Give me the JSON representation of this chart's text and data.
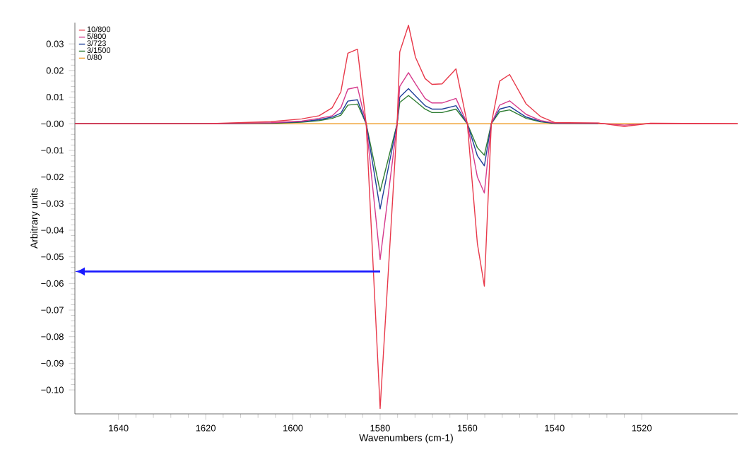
{
  "chart_data": {
    "type": "line",
    "xlabel": "Wavenumbers (cm-1)",
    "ylabel": "Arbitrary units",
    "xlim": [
      1650,
      1498
    ],
    "ylim": [
      -0.109,
      0.038
    ],
    "xticks": [
      1640,
      1620,
      1600,
      1580,
      1560,
      1540,
      1520
    ],
    "yticks": [
      {
        "value": 0.03,
        "label": "0.03"
      },
      {
        "value": 0.02,
        "label": "0.02"
      },
      {
        "value": 0.01,
        "label": "0.01"
      },
      {
        "value": 0,
        "label": "−0.00"
      },
      {
        "value": -0.01,
        "label": "−0.01"
      },
      {
        "value": -0.02,
        "label": "−0.02"
      },
      {
        "value": -0.03,
        "label": "−0.03"
      },
      {
        "value": -0.04,
        "label": "−0.04"
      },
      {
        "value": -0.05,
        "label": "−0.05"
      },
      {
        "value": -0.06,
        "label": "−0.06"
      },
      {
        "value": -0.07,
        "label": "−0.07"
      },
      {
        "value": -0.08,
        "label": "−0.08"
      },
      {
        "value": -0.09,
        "label": "−0.09"
      },
      {
        "value": -0.1,
        "label": "−0.10"
      }
    ],
    "legend": "top left",
    "ref_lines": [
      {
        "axis": "y",
        "value": -0.0555,
        "color": "#1a1aff"
      }
    ],
    "x": [
      1650,
      1620,
      1605,
      1598,
      1594,
      1591,
      1589,
      1587.4,
      1585.2,
      1583.2,
      1580,
      1576.1,
      1575.5,
      1573.5,
      1571.9,
      1569.7,
      1568.1,
      1565.8,
      1562.6,
      1560,
      1557.7,
      1556.1,
      1554.5,
      1552.6,
      1550.3,
      1546.5,
      1543.2,
      1540,
      1530,
      1524,
      1518,
      1498
    ],
    "series": [
      {
        "name": "10/800",
        "color": "#e8394a",
        "values": [
          0,
          0,
          0.0008,
          0.0018,
          0.003,
          0.006,
          0.012,
          0.0265,
          0.028,
          0,
          -0.107,
          0,
          0.027,
          0.037,
          0.025,
          0.017,
          0.0148,
          0.015,
          0.0206,
          0,
          -0.045,
          -0.061,
          0,
          0.016,
          0.0185,
          0.0074,
          0.0027,
          0.0005,
          0.0003,
          -0.001,
          0.0002,
          0
        ]
      },
      {
        "name": "5/800",
        "color": "#d63a8c",
        "values": [
          0,
          0,
          0.0004,
          0.001,
          0.002,
          0.003,
          0.006,
          0.013,
          0.0138,
          0,
          -0.051,
          0,
          0.014,
          0.0192,
          0.015,
          0.0095,
          0.0078,
          0.0078,
          0.0095,
          0,
          -0.02,
          -0.026,
          0,
          0.007,
          0.0086,
          0.0035,
          0.0012,
          0.0003,
          0.0002,
          -0.0005,
          0.0001,
          0
        ]
      },
      {
        "name": "3/723",
        "color": "#1f3f99",
        "values": [
          0,
          0,
          0.0003,
          0.0008,
          0.0015,
          0.0025,
          0.004,
          0.0085,
          0.009,
          0,
          -0.032,
          0,
          0.01,
          0.0132,
          0.0105,
          0.0068,
          0.0055,
          0.0055,
          0.0068,
          0,
          -0.012,
          -0.0158,
          0,
          0.0055,
          0.0065,
          0.0025,
          0.0009,
          0.0002,
          0.0001,
          null,
          null,
          null
        ]
      },
      {
        "name": "3/1500",
        "color": "#2e7d32",
        "values": [
          0,
          0,
          0.0002,
          0.0006,
          0.0012,
          0.002,
          0.0032,
          0.007,
          0.0074,
          0,
          -0.0254,
          0,
          0.008,
          0.0106,
          0.0085,
          0.0055,
          0.0042,
          0.0042,
          0.0055,
          0,
          -0.009,
          -0.0118,
          0,
          0.0045,
          0.0052,
          0.002,
          0.0007,
          0.0002,
          0.0001,
          null,
          null,
          null
        ]
      },
      {
        "name": "0/80",
        "color": "#f0a030",
        "x": [
          1650,
          1498
        ],
        "values": [
          0,
          0
        ]
      }
    ]
  }
}
